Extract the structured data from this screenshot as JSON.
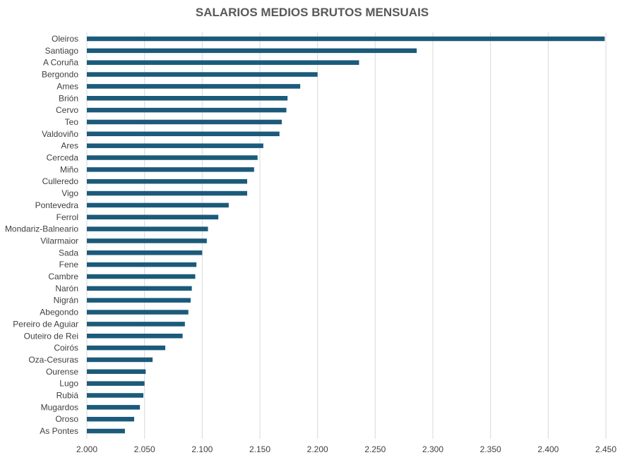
{
  "chart_data": {
    "type": "bar",
    "orientation": "horizontal",
    "title": "SALARIOS MEDIOS BRUTOS MENSUAIS",
    "xlabel": "",
    "ylabel": "",
    "xlim": [
      2000,
      2450
    ],
    "x_ticks": [
      2000,
      2050,
      2100,
      2150,
      2200,
      2250,
      2300,
      2350,
      2400,
      2450
    ],
    "x_tick_labels": [
      "2.000",
      "2.050",
      "2.100",
      "2.150",
      "2.200",
      "2.250",
      "2.300",
      "2.350",
      "2.400",
      "2.450"
    ],
    "grid": "vertical",
    "bar_color": "#1b5a7a",
    "categories": [
      "Oleiros",
      "Santiago",
      "A Coruña",
      "Bergondo",
      "Ames",
      "Brión",
      "Cervo",
      "Teo",
      "Valdoviño",
      "Ares",
      "Cerceda",
      "Miño",
      "Culleredo",
      "Vigo",
      "Pontevedra",
      "Ferrol",
      "Mondariz-Balneario",
      "Vilarmaior",
      "Sada",
      "Fene",
      "Cambre",
      "Narón",
      "Nigrán",
      "Abegondo",
      "Pereiro de Aguiar",
      "Outeiro de Rei",
      "Coirós",
      "Oza-Cesuras",
      "Ourense",
      "Lugo",
      "Rubiá",
      "Mugardos",
      "Oroso",
      "As Pontes"
    ],
    "values": [
      2449,
      2286,
      2236,
      2200,
      2185,
      2174,
      2173,
      2169,
      2167,
      2153,
      2148,
      2145,
      2139,
      2139,
      2123,
      2114,
      2105,
      2104,
      2100,
      2095,
      2094,
      2091,
      2090,
      2088,
      2085,
      2083,
      2068,
      2057,
      2051,
      2050,
      2049,
      2046,
      2041,
      2033
    ]
  }
}
